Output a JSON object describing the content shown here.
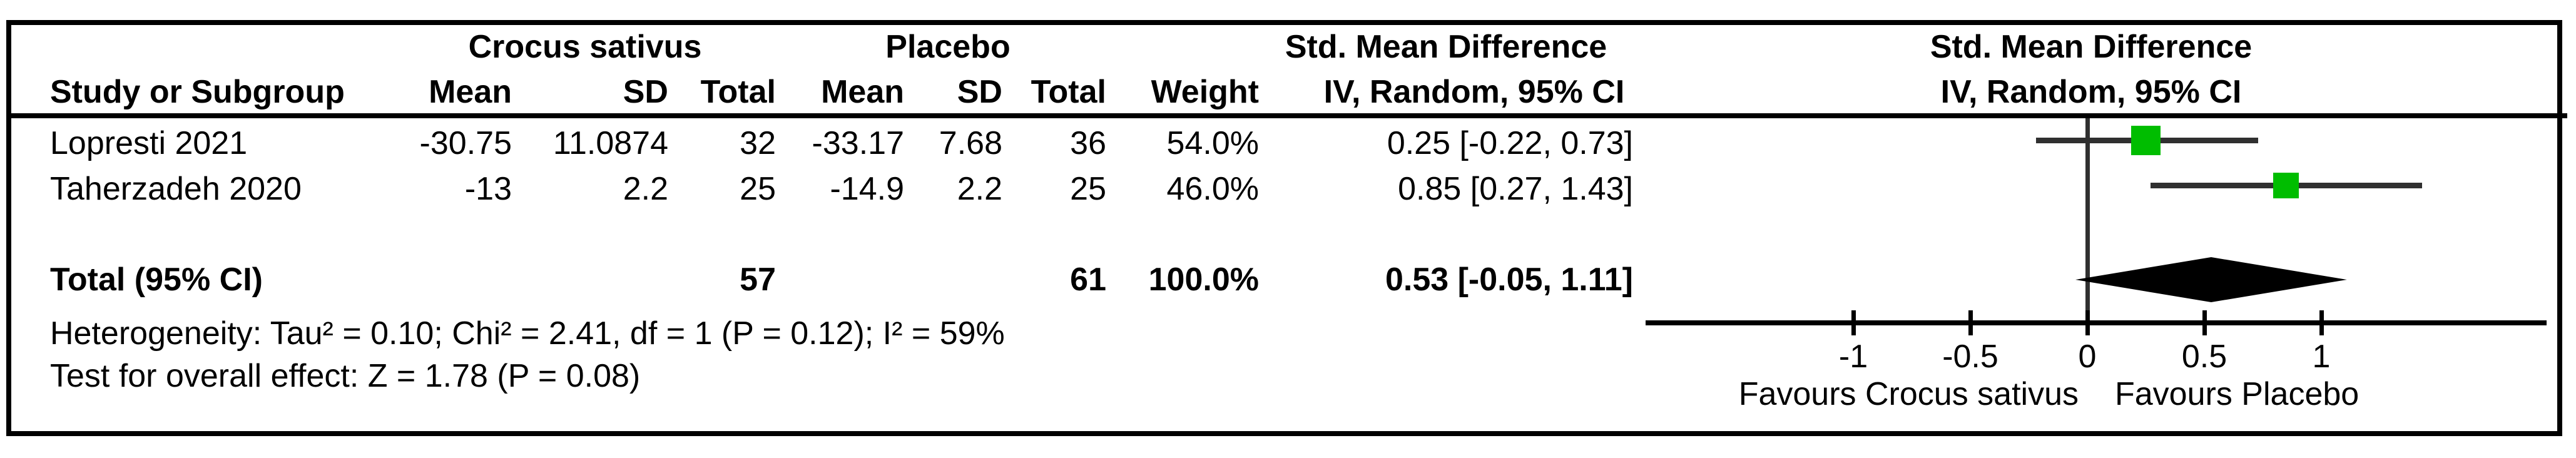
{
  "figure": {
    "headers": {
      "group_treatment": "Crocus sativus",
      "group_control": "Placebo",
      "effect_left": "Std. Mean Difference",
      "effect_right": "Std. Mean Difference",
      "study": "Study or Subgroup",
      "mean_t": "Mean",
      "sd_t": "SD",
      "total_t": "Total",
      "mean_c": "Mean",
      "sd_c": "SD",
      "total_c": "Total",
      "weight": "Weight",
      "method_left": "IV, Random, 95% CI",
      "method_right": "IV, Random, 95% CI"
    },
    "rows": [
      {
        "study": "Lopresti 2021",
        "mean_t": "-30.75",
        "sd_t": "11.0874",
        "total_t": "32",
        "mean_c": "-33.17",
        "sd_c": "7.68",
        "total_c": "36",
        "weight": "54.0%",
        "ci": "0.25 [-0.22, 0.73]"
      },
      {
        "study": "Taherzadeh 2020",
        "mean_t": "-13",
        "sd_t": "2.2",
        "total_t": "25",
        "mean_c": "-14.9",
        "sd_c": "2.2",
        "total_c": "25",
        "weight": "46.0%",
        "ci": "0.85 [0.27, 1.43]"
      }
    ],
    "total_row": {
      "label": "Total (95% CI)",
      "total_t": "57",
      "total_c": "61",
      "weight": "100.0%",
      "ci": "0.53 [-0.05, 1.11]"
    },
    "stats": {
      "heterogeneity": "Heterogeneity: Tau² = 0.10; Chi² = 2.41, df = 1 (P = 0.12); I² = 59%",
      "overall_effect": "Test for overall effect: Z = 1.78 (P = 0.08)"
    }
  },
  "chart_data": {
    "type": "forest",
    "effect_measure": "Std. Mean Difference",
    "method": "IV, Random, 95% CI",
    "studies": [
      {
        "name": "Lopresti 2021",
        "mean_t": -30.75,
        "sd_t": 11.0874,
        "n_t": 32,
        "mean_c": -33.17,
        "sd_c": 7.68,
        "n_c": 36,
        "weight_pct": 54.0,
        "estimate": 0.25,
        "ci_lower": -0.22,
        "ci_upper": 0.73
      },
      {
        "name": "Taherzadeh 2020",
        "mean_t": -13,
        "sd_t": 2.2,
        "n_t": 25,
        "mean_c": -14.9,
        "sd_c": 2.2,
        "n_c": 25,
        "weight_pct": 46.0,
        "estimate": 0.85,
        "ci_lower": 0.27,
        "ci_upper": 1.43
      }
    ],
    "total": {
      "label": "Total (95% CI)",
      "n_t": 57,
      "n_c": 61,
      "weight_pct": 100.0,
      "estimate": 0.53,
      "ci_lower": -0.05,
      "ci_upper": 1.11
    },
    "heterogeneity": {
      "tau2": 0.1,
      "chi2": 2.41,
      "df": 1,
      "p": 0.12,
      "i2_pct": 59
    },
    "overall_effect": {
      "z": 1.78,
      "p": 0.08
    },
    "axis": {
      "ticks": [
        -1,
        -0.5,
        0,
        0.5,
        1
      ],
      "xmin": -1.9,
      "xmax": 1.95,
      "favours_left": "Favours Crocus sativus",
      "favours_right": "Favours Placebo"
    },
    "marker_color": "#00bd00",
    "diamond_color": "#000000",
    "ci_line_color": "#303030"
  }
}
